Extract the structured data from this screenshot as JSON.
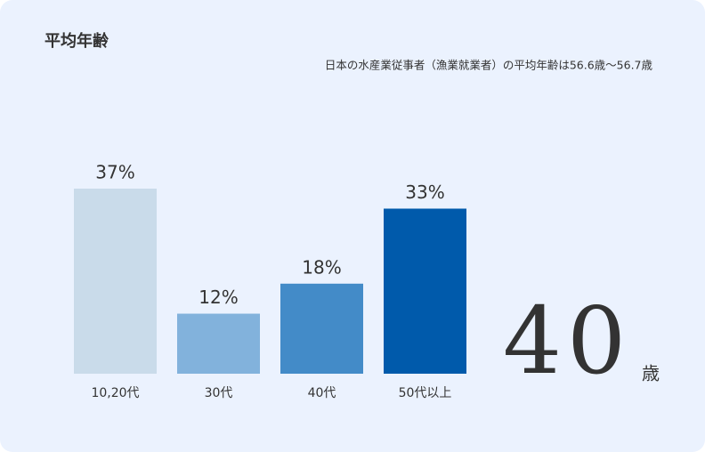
{
  "chart_data": {
    "type": "bar",
    "title": "平均年齢",
    "subtitle": "日本の水産業従事者（漁業就業者）の平均年齢は56.6歳〜56.7歳",
    "categories": [
      "10,20代",
      "30代",
      "40代",
      "50代以上"
    ],
    "values": [
      37,
      12,
      18,
      33
    ],
    "value_labels": [
      "37%",
      "12%",
      "18%",
      "33%"
    ],
    "colors": [
      "#c9dbea",
      "#82b2dc",
      "#438bc8",
      "#005aab"
    ],
    "annotation": {
      "number": "40",
      "unit": "歳"
    }
  }
}
